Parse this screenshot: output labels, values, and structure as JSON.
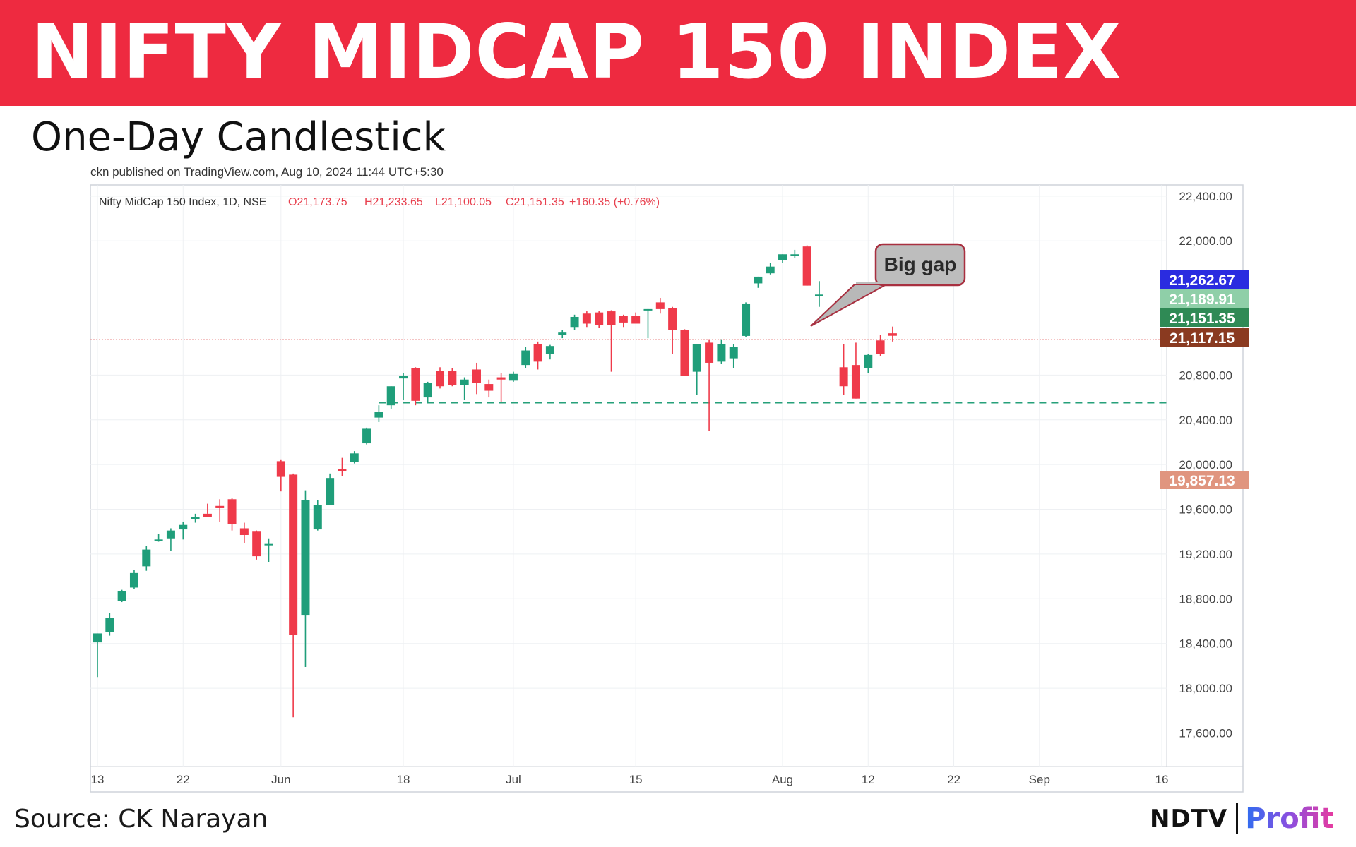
{
  "header": {
    "title": "NIFTY MIDCAP 150 INDEX",
    "subtitle": "One-Day Candlestick",
    "published": "ckn published on TradingView.com, Aug 10, 2024 11:44 UTC+5:30"
  },
  "footer": {
    "source": "Source: CK Narayan",
    "logo_ndtv": "NDTV",
    "logo_profit": "Profit"
  },
  "colors": {
    "banner": "#ee2a40",
    "up": "#1f9e7a",
    "down": "#ef3a4a",
    "support_line": "#26a07a",
    "price_line": "#e88a8a"
  },
  "chart_data": {
    "type": "candlestick",
    "legend": {
      "symbol": "Nifty MidCap 150 Index, 1D, NSE",
      "open": "O21,173.75",
      "high": "H21,233.65",
      "low": "L21,100.05",
      "close": "C21,151.35",
      "change": "+160.35 (+0.76%)"
    },
    "y_ticks": [
      "22,400.00",
      "22,000.00",
      "20,800.00",
      "20,400.00",
      "20,000.00",
      "19,600.00",
      "19,200.00",
      "18,800.00",
      "18,400.00",
      "18,000.00",
      "17,600.00"
    ],
    "y_tick_values": [
      22400,
      22000,
      20800,
      20400,
      20000,
      19600,
      19200,
      18800,
      18400,
      18000,
      17600
    ],
    "ylim": [
      17300,
      22500
    ],
    "x_ticks": [
      {
        "label": "13",
        "index": 0
      },
      {
        "label": "22",
        "index": 7
      },
      {
        "label": "Jun",
        "index": 15
      },
      {
        "label": "18",
        "index": 25
      },
      {
        "label": "Jul",
        "index": 34
      },
      {
        "label": "15",
        "index": 44
      },
      {
        "label": "Aug",
        "index": 56
      },
      {
        "label": "12",
        "index": 63
      },
      {
        "label": "22",
        "index": 70
      },
      {
        "label": "Sep",
        "index": 77
      },
      {
        "label": "16",
        "index": 87
      }
    ],
    "x_count": 88,
    "candles": [
      {
        "o": 18410,
        "h": 18490,
        "l": 18100,
        "c": 18490
      },
      {
        "o": 18500,
        "h": 18670,
        "l": 18470,
        "c": 18630
      },
      {
        "o": 18780,
        "h": 18880,
        "l": 18770,
        "c": 18870
      },
      {
        "o": 18900,
        "h": 19060,
        "l": 18890,
        "c": 19030
      },
      {
        "o": 19090,
        "h": 19270,
        "l": 19050,
        "c": 19240
      },
      {
        "o": 19320,
        "h": 19380,
        "l": 19310,
        "c": 19330
      },
      {
        "o": 19340,
        "h": 19430,
        "l": 19230,
        "c": 19410
      },
      {
        "o": 19420,
        "h": 19490,
        "l": 19330,
        "c": 19460
      },
      {
        "o": 19510,
        "h": 19560,
        "l": 19480,
        "c": 19530
      },
      {
        "o": 19560,
        "h": 19650,
        "l": 19560,
        "c": 19530
      },
      {
        "o": 19630,
        "h": 19690,
        "l": 19490,
        "c": 19610
      },
      {
        "o": 19690,
        "h": 19700,
        "l": 19410,
        "c": 19470
      },
      {
        "o": 19430,
        "h": 19480,
        "l": 19300,
        "c": 19370
      },
      {
        "o": 19400,
        "h": 19410,
        "l": 19150,
        "c": 19180
      },
      {
        "o": 19280,
        "h": 19340,
        "l": 19130,
        "c": 19290
      },
      {
        "o": 20030,
        "h": 20040,
        "l": 19760,
        "c": 19890
      },
      {
        "o": 19910,
        "h": 19920,
        "l": 17740,
        "c": 18480
      },
      {
        "o": 18650,
        "h": 19770,
        "l": 18190,
        "c": 19680
      },
      {
        "o": 19420,
        "h": 19680,
        "l": 19410,
        "c": 19640
      },
      {
        "o": 19640,
        "h": 19920,
        "l": 19640,
        "c": 19880
      },
      {
        "o": 19960,
        "h": 20060,
        "l": 19900,
        "c": 19940
      },
      {
        "o": 20020,
        "h": 20120,
        "l": 20010,
        "c": 20100
      },
      {
        "o": 20190,
        "h": 20330,
        "l": 20180,
        "c": 20320
      },
      {
        "o": 20420,
        "h": 20530,
        "l": 20380,
        "c": 20470
      },
      {
        "o": 20530,
        "h": 20700,
        "l": 20500,
        "c": 20700
      },
      {
        "o": 20770,
        "h": 20820,
        "l": 20580,
        "c": 20790
      },
      {
        "o": 20860,
        "h": 20870,
        "l": 20530,
        "c": 20570
      },
      {
        "o": 20600,
        "h": 20740,
        "l": 20560,
        "c": 20730
      },
      {
        "o": 20840,
        "h": 20870,
        "l": 20680,
        "c": 20700
      },
      {
        "o": 20840,
        "h": 20860,
        "l": 20700,
        "c": 20710
      },
      {
        "o": 20710,
        "h": 20780,
        "l": 20580,
        "c": 20760
      },
      {
        "o": 20850,
        "h": 20910,
        "l": 20630,
        "c": 20730
      },
      {
        "o": 20720,
        "h": 20760,
        "l": 20600,
        "c": 20660
      },
      {
        "o": 20780,
        "h": 20820,
        "l": 20560,
        "c": 20760
      },
      {
        "o": 20750,
        "h": 20830,
        "l": 20740,
        "c": 20810
      },
      {
        "o": 20890,
        "h": 21050,
        "l": 20860,
        "c": 21020
      },
      {
        "o": 21080,
        "h": 21100,
        "l": 20850,
        "c": 20920
      },
      {
        "o": 20990,
        "h": 21070,
        "l": 20940,
        "c": 21060
      },
      {
        "o": 21160,
        "h": 21200,
        "l": 21130,
        "c": 21180
      },
      {
        "o": 21230,
        "h": 21340,
        "l": 21200,
        "c": 21320
      },
      {
        "o": 21350,
        "h": 21370,
        "l": 21230,
        "c": 21260
      },
      {
        "o": 21360,
        "h": 21370,
        "l": 21220,
        "c": 21250
      },
      {
        "o": 21370,
        "h": 21380,
        "l": 20830,
        "c": 21250
      },
      {
        "o": 21330,
        "h": 21340,
        "l": 21230,
        "c": 21270
      },
      {
        "o": 21330,
        "h": 21360,
        "l": 21260,
        "c": 21260
      },
      {
        "o": 21380,
        "h": 21390,
        "l": 21130,
        "c": 21390
      },
      {
        "o": 21450,
        "h": 21490,
        "l": 21350,
        "c": 21390
      },
      {
        "o": 21400,
        "h": 21410,
        "l": 20990,
        "c": 21200
      },
      {
        "o": 21200,
        "h": 21210,
        "l": 20790,
        "c": 20790
      },
      {
        "o": 20830,
        "h": 21080,
        "l": 20620,
        "c": 21080
      },
      {
        "o": 21090,
        "h": 21120,
        "l": 20300,
        "c": 20910
      },
      {
        "o": 20920,
        "h": 21120,
        "l": 20900,
        "c": 21080
      },
      {
        "o": 20950,
        "h": 21080,
        "l": 20860,
        "c": 21050
      },
      {
        "o": 21150,
        "h": 21450,
        "l": 21140,
        "c": 21440
      },
      {
        "o": 21620,
        "h": 21680,
        "l": 21580,
        "c": 21680
      },
      {
        "o": 21710,
        "h": 21800,
        "l": 21700,
        "c": 21770
      },
      {
        "o": 21830,
        "h": 21880,
        "l": 21800,
        "c": 21880
      },
      {
        "o": 21870,
        "h": 21920,
        "l": 21850,
        "c": 21880
      },
      {
        "o": 21950,
        "h": 21960,
        "l": 21600,
        "c": 21600
      },
      {
        "o": 21520,
        "h": 21640,
        "l": 21410,
        "c": 21520
      },
      {
        "o": 20870,
        "h": 21080,
        "l": 20620,
        "c": 20700
      },
      {
        "o": 20890,
        "h": 21090,
        "l": 20590,
        "c": 20590
      },
      {
        "o": 20860,
        "h": 20990,
        "l": 20820,
        "c": 20980
      },
      {
        "o": 21110,
        "h": 21160,
        "l": 20970,
        "c": 20990
      },
      {
        "o": 21173.75,
        "h": 21233.65,
        "l": 21100.05,
        "c": 21151.35
      }
    ],
    "candle_slots": [
      0,
      1,
      2,
      3,
      4,
      5,
      6,
      7,
      8,
      9,
      10,
      11,
      12,
      13,
      14,
      15,
      16,
      17,
      18,
      19,
      20,
      21,
      22,
      23,
      24,
      25,
      26,
      27,
      28,
      29,
      30,
      31,
      32,
      33,
      34,
      35,
      36,
      37,
      38,
      39,
      40,
      41,
      42,
      43,
      44,
      45,
      46,
      47,
      48,
      49,
      50,
      51,
      52,
      53,
      54,
      55,
      56,
      57,
      58,
      59,
      61,
      62,
      63,
      64,
      65
    ],
    "price_labels": [
      {
        "text": "21,262.67",
        "value": 21262.67,
        "color": "#2a2ce0"
      },
      {
        "text": "21,189.91",
        "value": 21189.91,
        "color": "#8fcfa8"
      },
      {
        "text": "21,151.35",
        "value": 21151.35,
        "color": "#2f8a55"
      },
      {
        "text": "21,117.15",
        "value": 21117.15,
        "color": "#8a3a20"
      },
      {
        "text": "19,857.13",
        "value": 19857.13,
        "color": "#e0957f"
      }
    ],
    "current_price": 21117.15,
    "support_level": 20555,
    "annotation": {
      "text": "Big gap"
    }
  }
}
